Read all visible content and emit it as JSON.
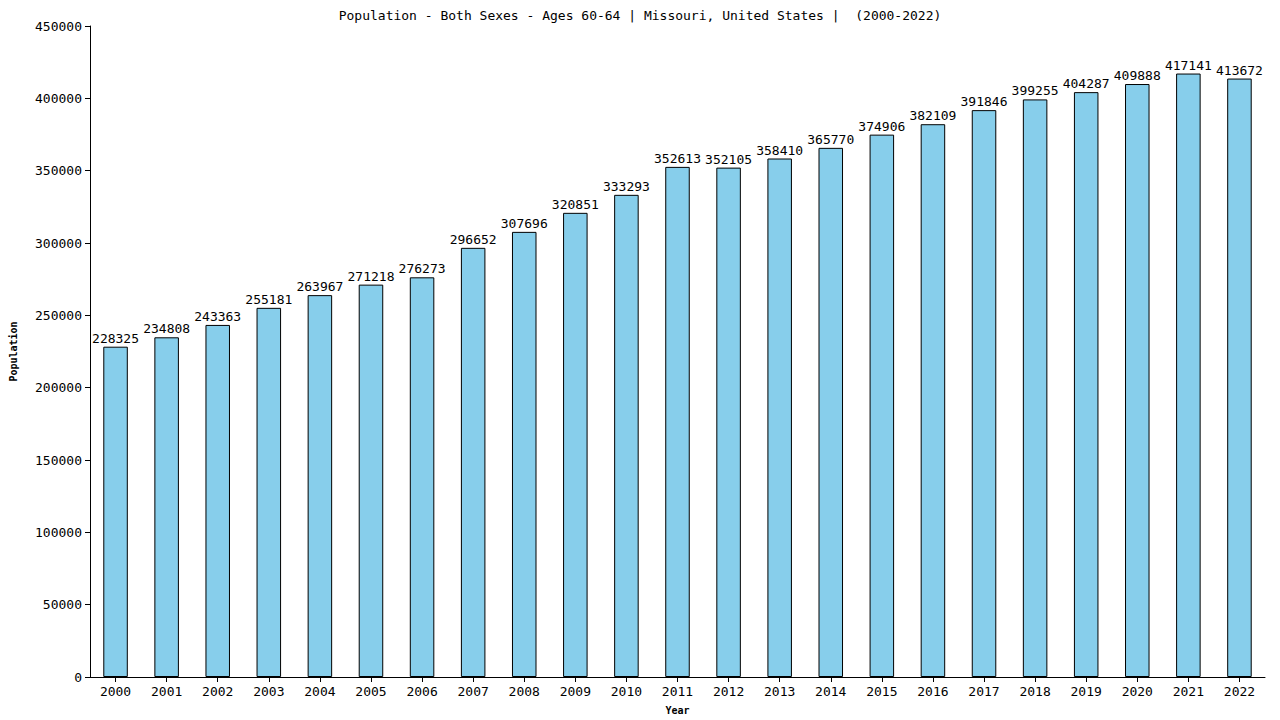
{
  "chart_data": {
    "type": "bar",
    "title": "Population - Both Sexes - Ages 60-64 | Missouri, United States |  (2000-2022)",
    "x_label": "Year",
    "y_label": "Population",
    "categories": [
      "2000",
      "2001",
      "2002",
      "2003",
      "2004",
      "2005",
      "2006",
      "2007",
      "2008",
      "2009",
      "2010",
      "2011",
      "2012",
      "2013",
      "2014",
      "2015",
      "2016",
      "2017",
      "2018",
      "2019",
      "2020",
      "2021",
      "2022"
    ],
    "values": [
      228325,
      234808,
      243363,
      255181,
      263967,
      271218,
      276273,
      296652,
      307696,
      320851,
      333293,
      352613,
      352105,
      358410,
      365770,
      374906,
      382109,
      391846,
      399255,
      404287,
      409888,
      417141,
      413672
    ],
    "color": "#87ceeb",
    "ylim": [
      0,
      450000
    ],
    "yticks": [
      0,
      50000,
      100000,
      150000,
      200000,
      250000,
      300000,
      350000,
      400000,
      450000
    ],
    "grid": false,
    "data_labels": true
  }
}
